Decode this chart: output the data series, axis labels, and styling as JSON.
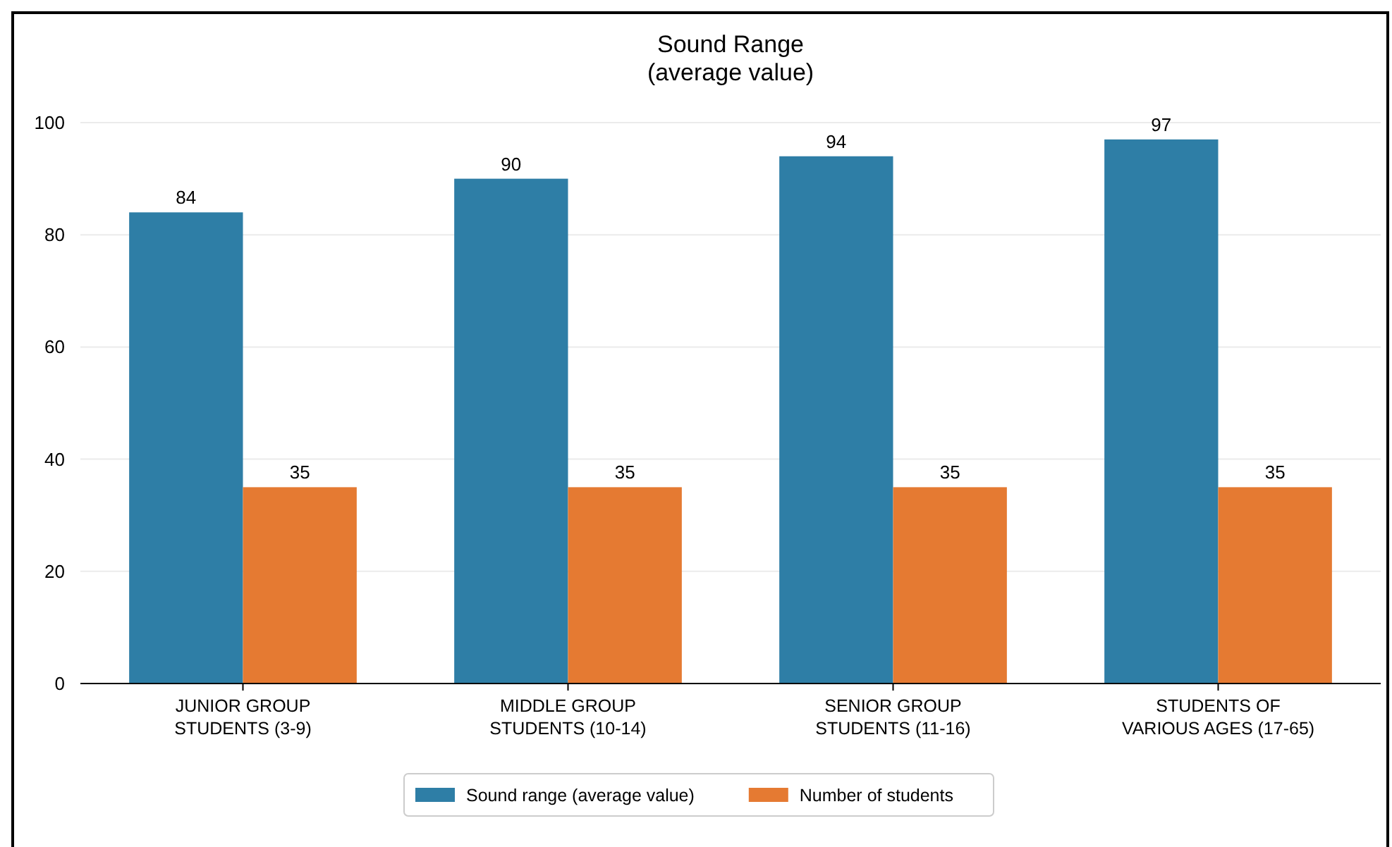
{
  "chart_data": {
    "type": "bar",
    "title": "Sound Range\n(average value)",
    "categories": [
      "JUNIOR GROUP\nSTUDENTS (3-9)",
      "MIDDLE GROUP\nSTUDENTS (10-14)",
      "SENIOR GROUP\nSTUDENTS (11-16)",
      "STUDENTS OF\nVARIOUS AGES (17-65)"
    ],
    "series": [
      {
        "name": "Sound range (average value)",
        "color": "#2e7ea6",
        "values": [
          84,
          90,
          94,
          97
        ]
      },
      {
        "name": "Number of students",
        "color": "#e57a32",
        "values": [
          35,
          35,
          35,
          35
        ]
      }
    ],
    "ylim": [
      0,
      100
    ],
    "yticks": [
      0,
      20,
      40,
      60,
      80,
      100
    ],
    "grid": "y",
    "legend": "bottom",
    "data_labels": true
  }
}
